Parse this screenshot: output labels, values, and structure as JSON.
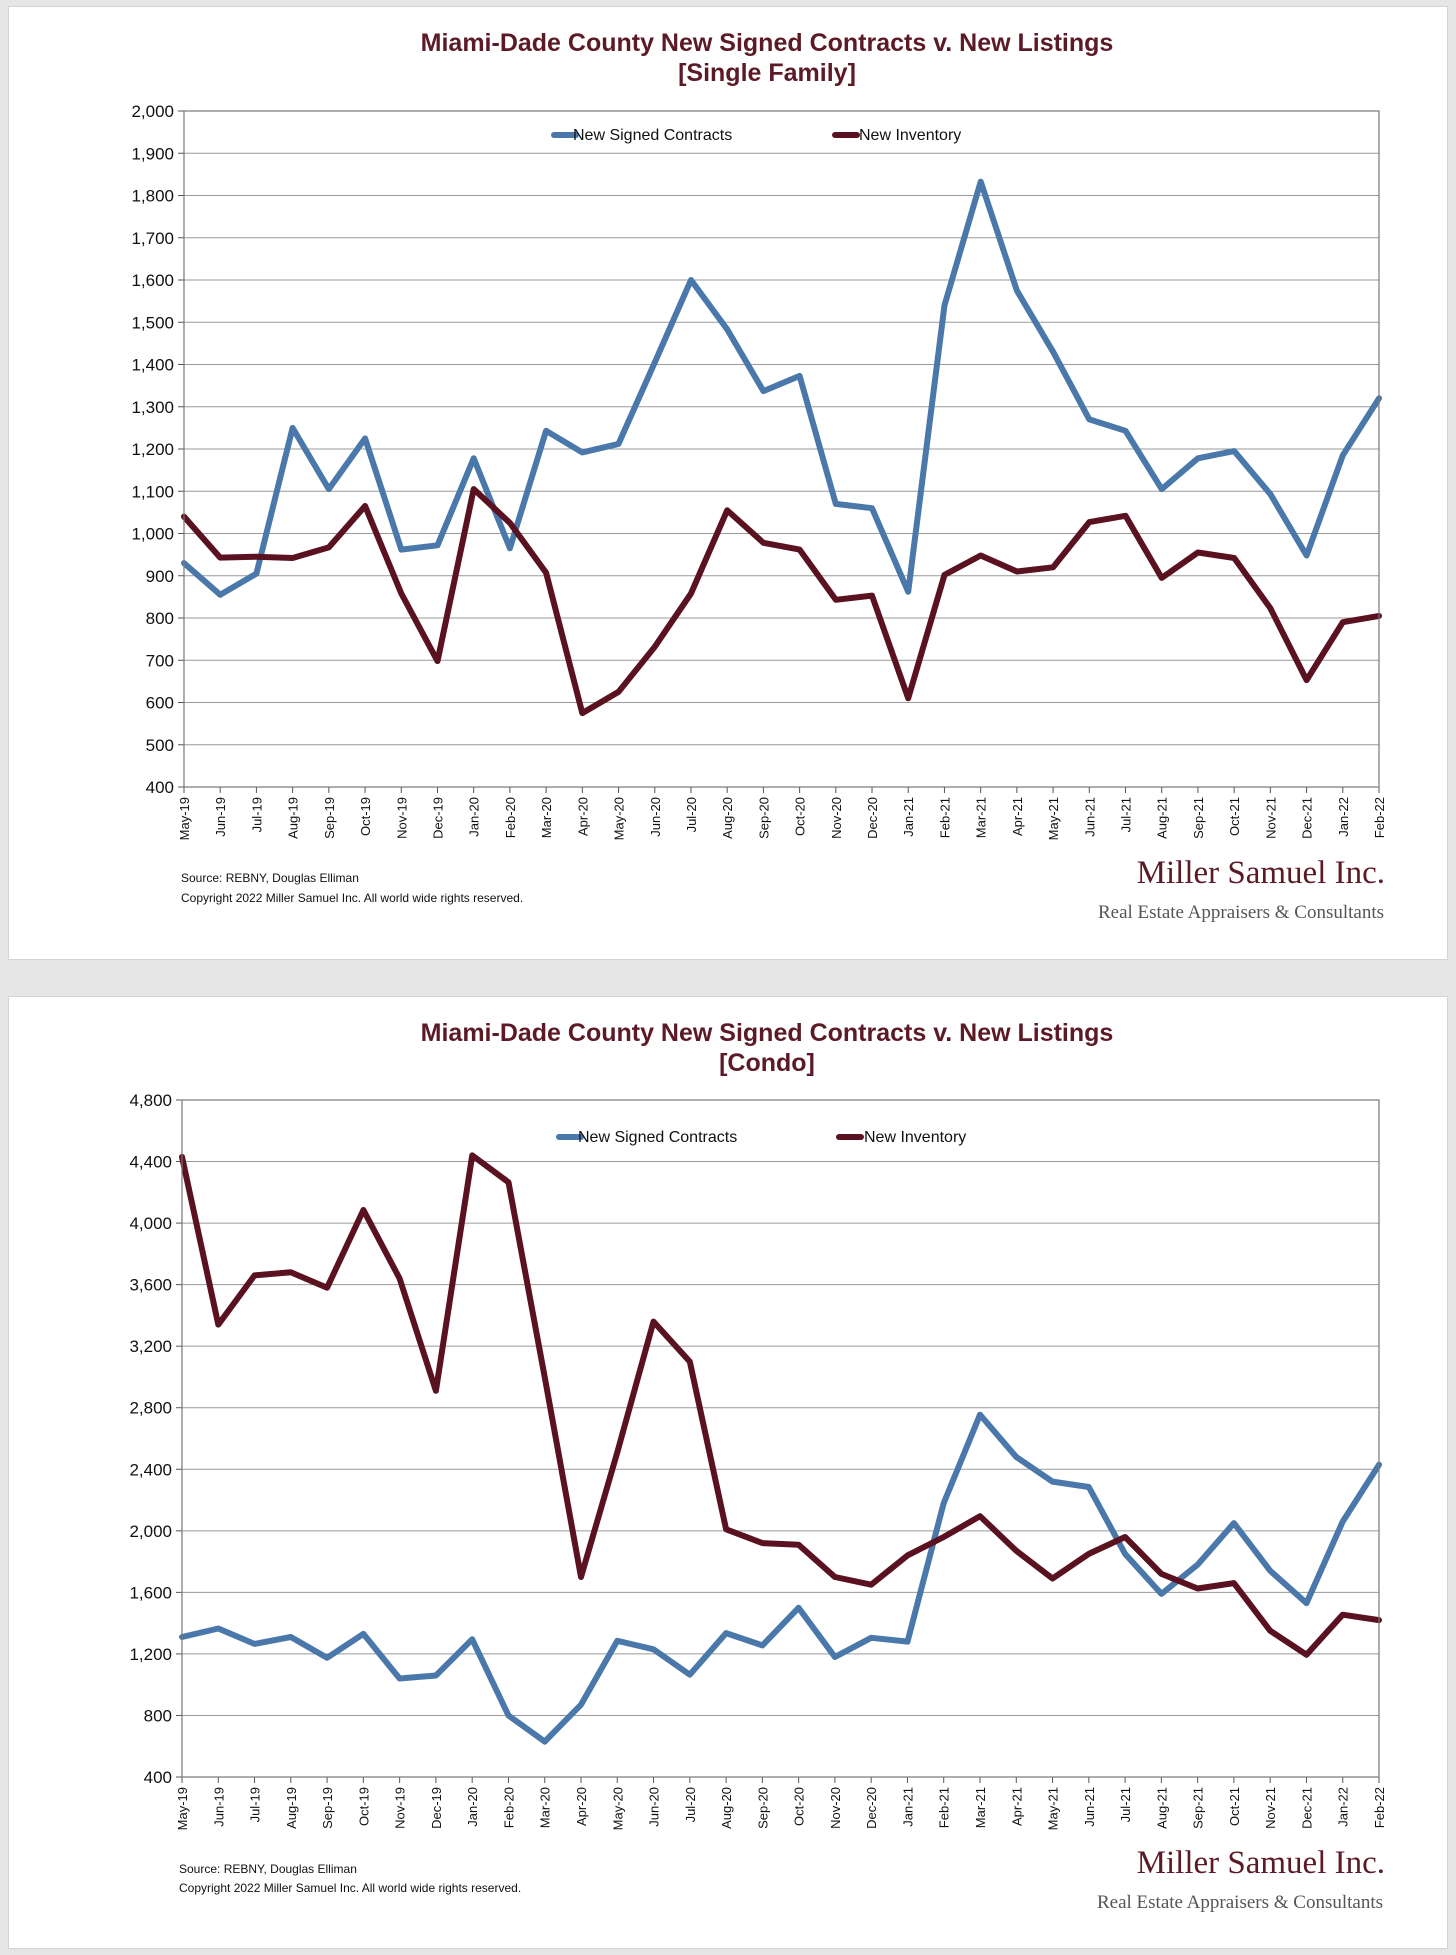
{
  "brand": {
    "name": "Miller Samuel Inc.",
    "tagline": "Real Estate Appraisers & Consultants"
  },
  "chart_data": [
    {
      "type": "line",
      "title": "Miami-Dade County New Signed Contracts v. New Listings",
      "subtitle": "[Single Family]",
      "source": "Source: REBNY, Douglas Elliman",
      "copyright": "Copyright 2022 Miller Samuel Inc.  All world wide rights reserved.",
      "ylim": [
        400,
        2000
      ],
      "yticks": [
        400,
        500,
        600,
        700,
        800,
        900,
        1000,
        1100,
        1200,
        1300,
        1400,
        1500,
        1600,
        1700,
        1800,
        1900,
        2000
      ],
      "ytick_labels": [
        "400",
        "500",
        "600",
        "700",
        "800",
        "900",
        "1,000",
        "1,100",
        "1,200",
        "1,300",
        "1,400",
        "1,500",
        "1,600",
        "1,700",
        "1,800",
        "1,900",
        "2,000"
      ],
      "grid": true,
      "legend_position": "top-center",
      "categories": [
        "May-19",
        "Jun-19",
        "Jul-19",
        "Aug-19",
        "Sep-19",
        "Oct-19",
        "Nov-19",
        "Dec-19",
        "Jan-20",
        "Feb-20",
        "Mar-20",
        "Apr-20",
        "May-20",
        "Jun-20",
        "Jul-20",
        "Aug-20",
        "Sep-20",
        "Oct-20",
        "Nov-20",
        "Dec-20",
        "Jan-21",
        "Feb-21",
        "Mar-21",
        "Apr-21",
        "May-21",
        "Jun-21",
        "Jul-21",
        "Aug-21",
        "Sep-21",
        "Oct-21",
        "Nov-21",
        "Dec-21",
        "Jan-22",
        "Feb-22"
      ],
      "series": [
        {
          "name": "New Signed Contracts",
          "color": "#4a78aa",
          "values": [
            930,
            855,
            905,
            1250,
            1105,
            1225,
            962,
            972,
            1178,
            965,
            1243,
            1192,
            1212,
            1405,
            1600,
            1483,
            1337,
            1373,
            1070,
            1060,
            862,
            1540,
            1833,
            1575,
            1430,
            1270,
            1243,
            1105,
            1178,
            1195,
            1093,
            948,
            1185,
            1320
          ]
        },
        {
          "name": "New Inventory",
          "color": "#5a1220",
          "values": [
            1040,
            943,
            945,
            942,
            967,
            1065,
            858,
            698,
            1105,
            1025,
            907,
            575,
            625,
            732,
            858,
            1055,
            978,
            962,
            843,
            853,
            610,
            902,
            948,
            910,
            920,
            1027,
            1042,
            895,
            955,
            942,
            823,
            653,
            790,
            805
          ]
        }
      ]
    },
    {
      "type": "line",
      "title": "Miami-Dade County New Signed Contracts v. New Listings",
      "subtitle": "[Condo]",
      "source": "Source: REBNY, Douglas Elliman",
      "copyright": "Copyright 2022 Miller Samuel Inc.  All world wide rights reserved.",
      "ylim": [
        400,
        4800
      ],
      "yticks": [
        400,
        800,
        1200,
        1600,
        2000,
        2400,
        2800,
        3200,
        3600,
        4000,
        4400,
        4800
      ],
      "ytick_labels": [
        "400",
        "800",
        "1,200",
        "1,600",
        "2,000",
        "2,400",
        "2,800",
        "3,200",
        "3,600",
        "4,000",
        "4,400",
        "4,800"
      ],
      "grid": true,
      "legend_position": "top-center",
      "categories": [
        "May-19",
        "Jun-19",
        "Jul-19",
        "Aug-19",
        "Sep-19",
        "Oct-19",
        "Nov-19",
        "Dec-19",
        "Jan-20",
        "Feb-20",
        "Mar-20",
        "Apr-20",
        "May-20",
        "Jun-20",
        "Jul-20",
        "Aug-20",
        "Sep-20",
        "Oct-20",
        "Nov-20",
        "Dec-20",
        "Jan-21",
        "Feb-21",
        "Mar-21",
        "Apr-21",
        "May-21",
        "Jun-21",
        "Jul-21",
        "Aug-21",
        "Sep-21",
        "Oct-21",
        "Nov-21",
        "Dec-21",
        "Jan-22",
        "Feb-22"
      ],
      "series": [
        {
          "name": "New Signed Contracts",
          "color": "#4a78aa",
          "values": [
            1310,
            1365,
            1265,
            1310,
            1175,
            1330,
            1040,
            1060,
            1295,
            800,
            630,
            870,
            1285,
            1230,
            1065,
            1335,
            1255,
            1500,
            1180,
            1305,
            1280,
            2180,
            2755,
            2480,
            2320,
            2285,
            1850,
            1590,
            1780,
            2050,
            1740,
            1530,
            2060,
            2430
          ]
        },
        {
          "name": "New Inventory",
          "color": "#5a1220",
          "values": [
            4430,
            3340,
            3660,
            3680,
            3580,
            4085,
            3640,
            2910,
            4440,
            4265,
            3000,
            1700,
            2510,
            3360,
            3100,
            2010,
            1920,
            1910,
            1700,
            1650,
            1840,
            1960,
            2095,
            1870,
            1690,
            1850,
            1960,
            1720,
            1625,
            1660,
            1350,
            1195,
            1455,
            1420
          ]
        }
      ]
    }
  ]
}
